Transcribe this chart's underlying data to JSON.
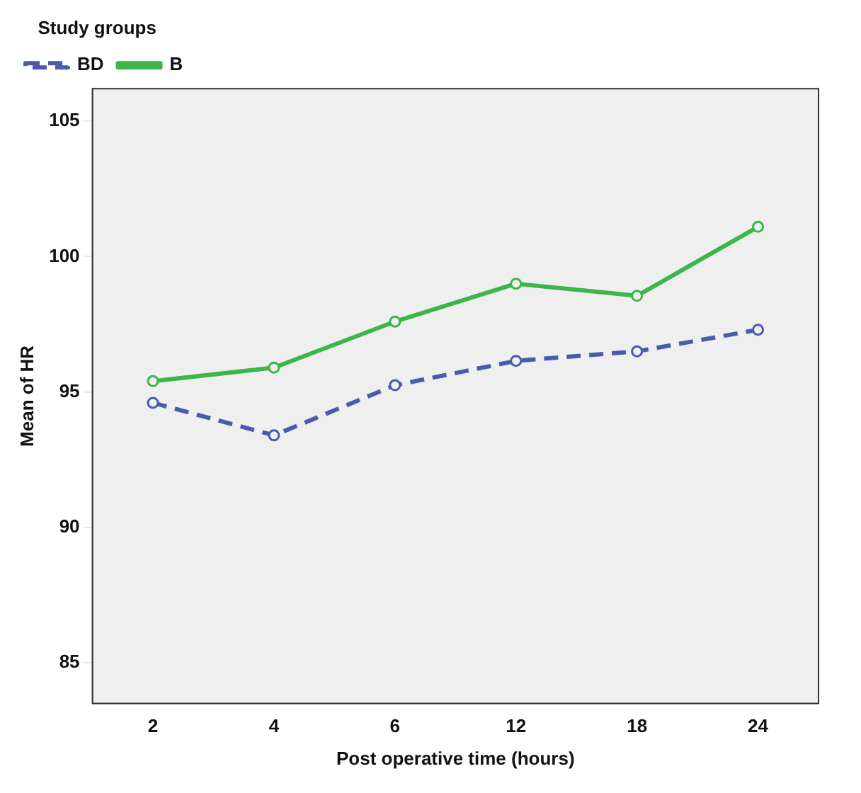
{
  "chart_data": {
    "type": "line",
    "xlabel": "Post operative time (hours)",
    "ylabel": "Mean of HR",
    "legend_title": "Study groups",
    "categories": [
      "2",
      "4",
      "6",
      "12",
      "18",
      "24"
    ],
    "series": [
      {
        "name": "BD",
        "color": "#4a5bab",
        "line_style": "dashed",
        "values": [
          94.6,
          93.4,
          95.25,
          96.15,
          96.5,
          97.3
        ]
      },
      {
        "name": "B",
        "color": "#3cb54a",
        "line_style": "solid",
        "values": [
          95.4,
          95.9,
          97.6,
          99.0,
          98.55,
          101.1
        ]
      }
    ],
    "ylim": [
      83.5,
      106.2
    ],
    "yticks": [
      85,
      90,
      95,
      100,
      105
    ],
    "grid": false,
    "legend": "top left",
    "marker": "circle"
  }
}
